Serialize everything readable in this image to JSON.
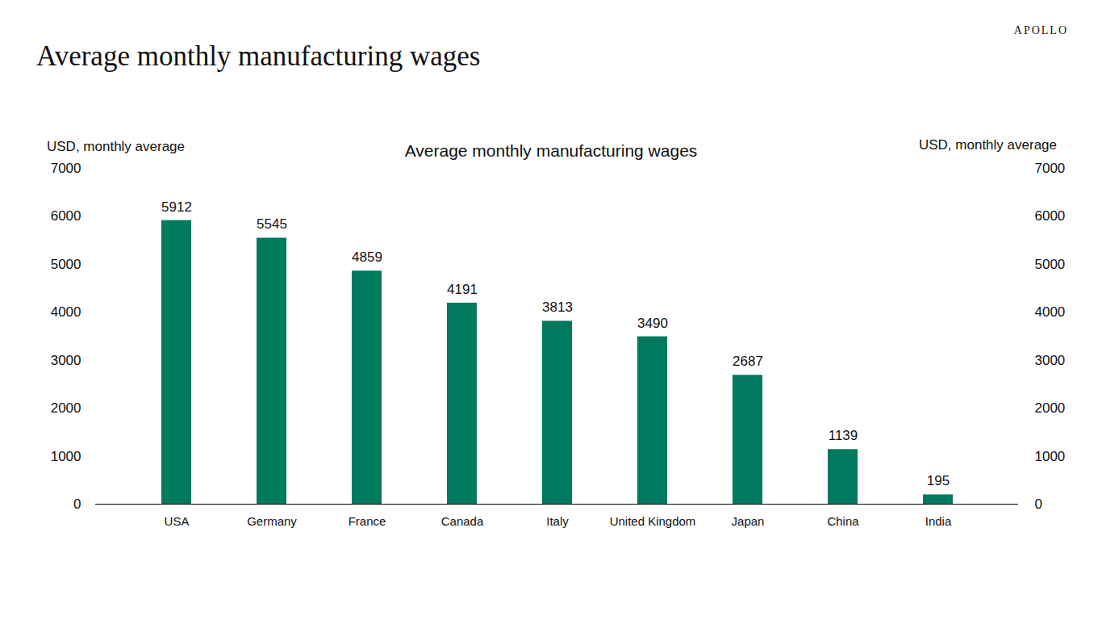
{
  "page": {
    "title": "Average monthly manufacturing wages",
    "brand": "APOLLO"
  },
  "chart_data": {
    "type": "bar",
    "title": "Average monthly manufacturing wages",
    "ylabel": "USD, monthly average",
    "y2label": "USD, monthly average",
    "categories": [
      "USA",
      "Germany",
      "France",
      "Canada",
      "Italy",
      "United Kingdom",
      "Japan",
      "China",
      "India"
    ],
    "values": [
      5912,
      5545,
      4859,
      4191,
      3813,
      3490,
      2687,
      1139,
      195
    ],
    "color": "#007a5f",
    "ylim": [
      0,
      7000
    ],
    "yticks": [
      0,
      1000,
      2000,
      3000,
      4000,
      5000,
      6000,
      7000
    ],
    "y2lim": [
      0,
      7000
    ],
    "y2ticks": [
      0,
      1000,
      2000,
      3000,
      4000,
      5000,
      6000,
      7000
    ],
    "grid": false,
    "data_labels": true
  }
}
